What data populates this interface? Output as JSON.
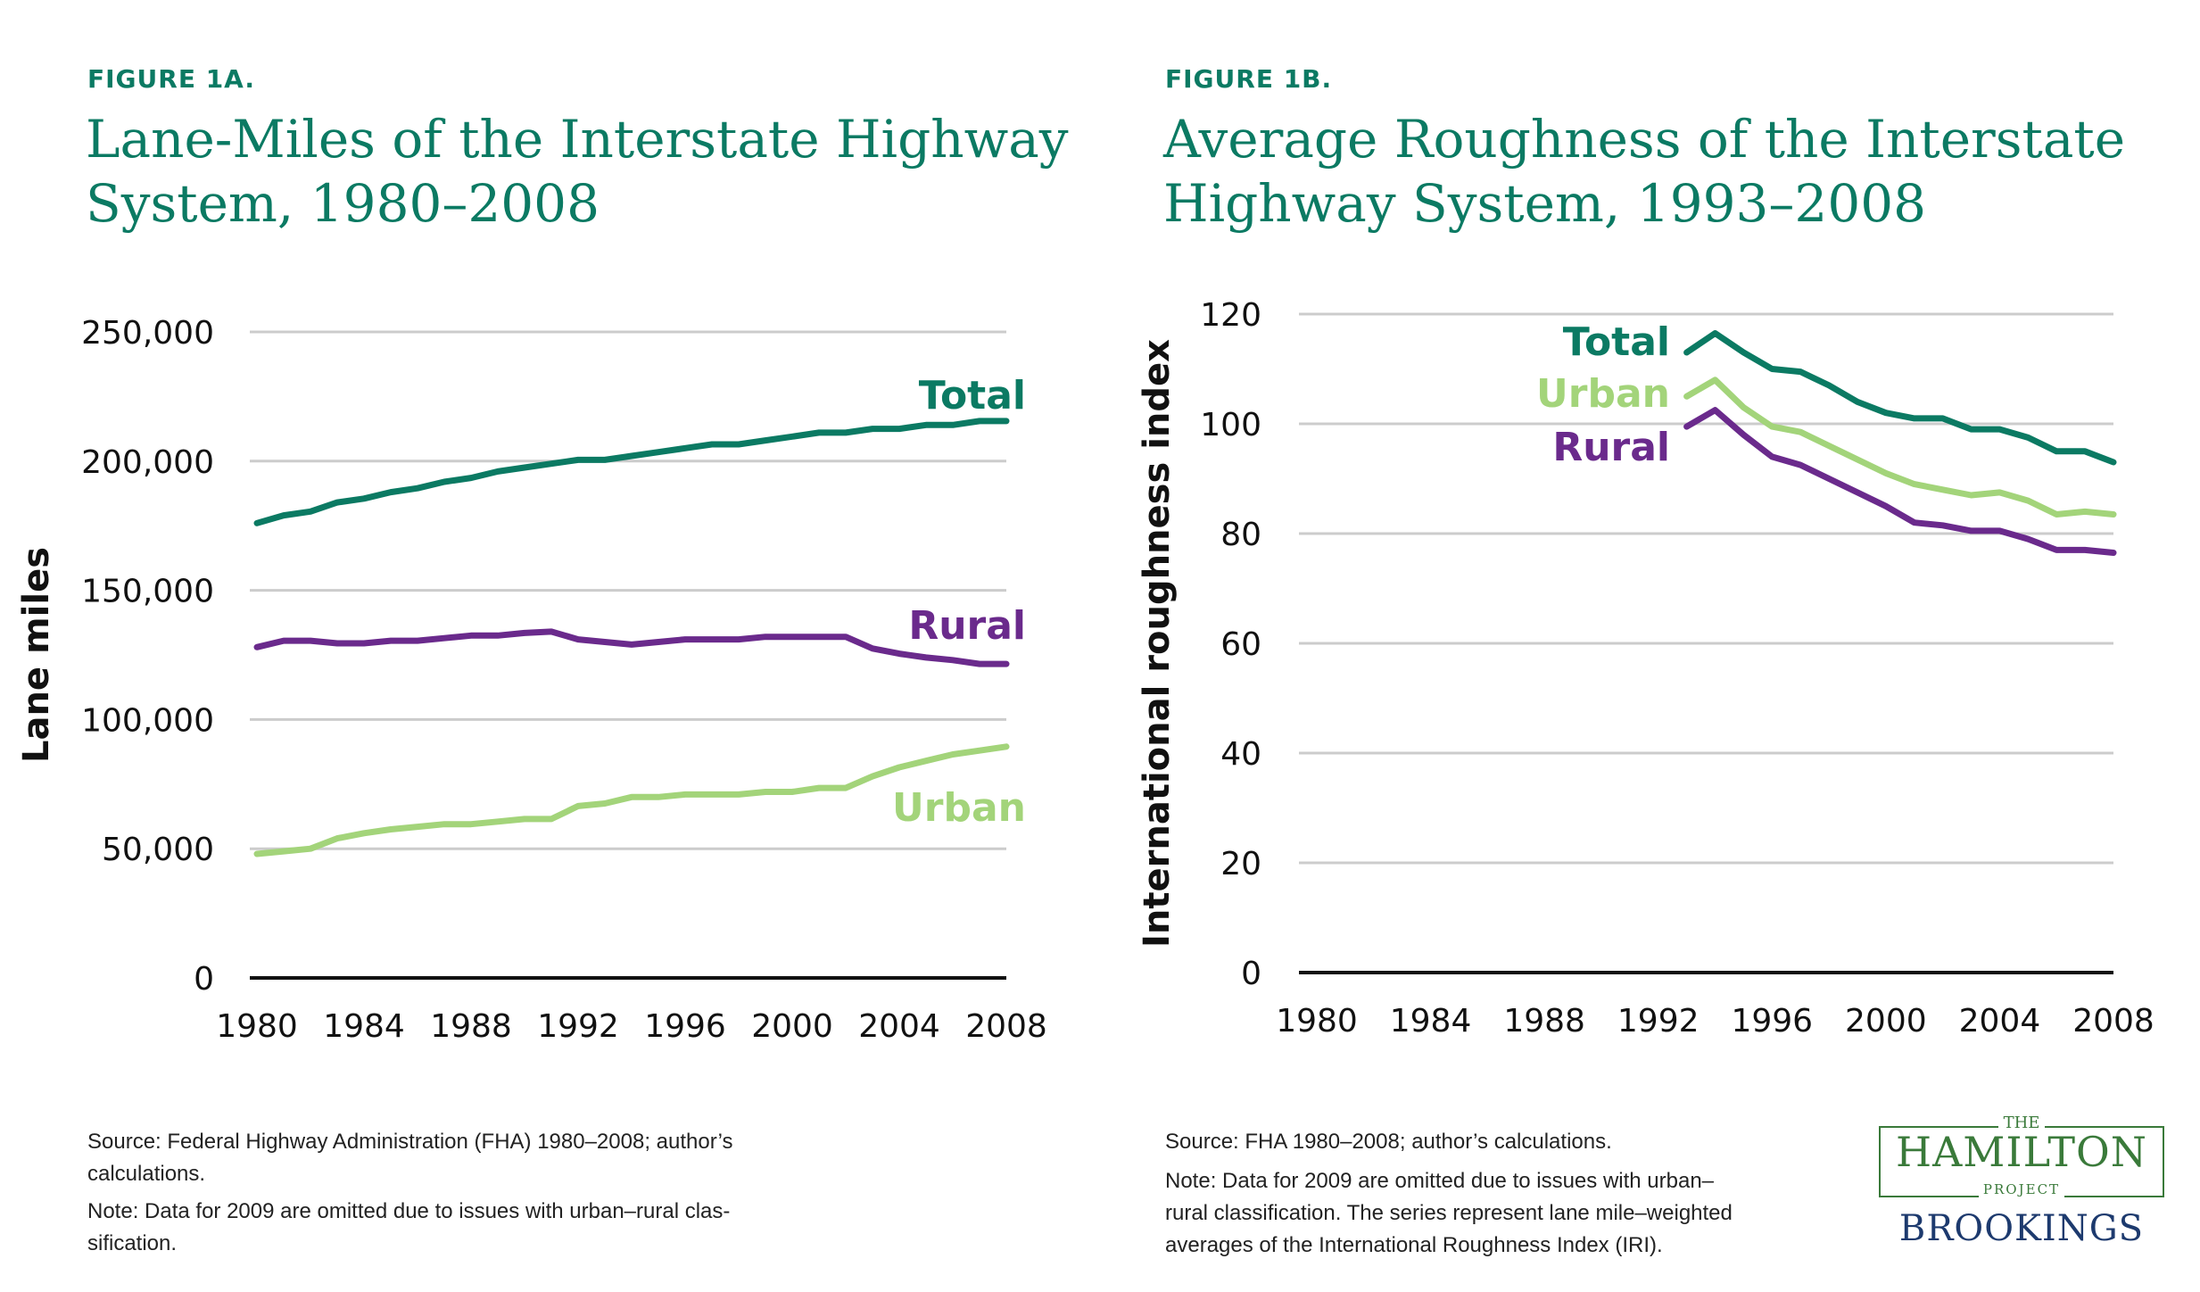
{
  "figures": [
    {
      "label": "FIGURE 1A.",
      "title_lines": [
        "Lane-Miles of the Interstate Highway",
        "System, 1980–2008"
      ],
      "source_lines": [
        "Source: Federal Highway Administration (FHA) 1980–2008; author’s",
        "calculations."
      ],
      "note_lines": [
        "Note: Data for 2009 are omitted due to issues with urban–rural clas-",
        "sification."
      ]
    },
    {
      "label": "FIGURE 1B.",
      "title_lines": [
        "Average Roughness of the Interstate",
        "Highway System, 1993–2008"
      ],
      "source_lines": [
        "Source: FHA 1980–2008; author’s calculations."
      ],
      "note_lines": [
        "Note: Data for 2009 are omitted due to issues with urban–",
        "rural classification. The series represent lane mile–weighted",
        "averages of the International Roughness Index (IRI)."
      ]
    }
  ],
  "chart_data": [
    {
      "type": "line",
      "title": "Lane-Miles of the Interstate Highway System, 1980–2008",
      "xlabel": "",
      "ylabel": "Lane miles",
      "xlim": [
        1980,
        2008
      ],
      "ylim": [
        0,
        250000
      ],
      "xticks": [
        1980,
        1984,
        1988,
        1992,
        1996,
        2000,
        2004,
        2008
      ],
      "yticks": [
        0,
        50000,
        100000,
        150000,
        200000,
        250000
      ],
      "ytick_labels": [
        "0",
        "50,000",
        "100,000",
        "150,000",
        "200,000",
        "250,000"
      ],
      "grid": true,
      "x": [
        1980,
        1981,
        1982,
        1983,
        1984,
        1985,
        1986,
        1987,
        1988,
        1989,
        1990,
        1991,
        1992,
        1993,
        1994,
        1995,
        1996,
        1997,
        1998,
        1999,
        2000,
        2001,
        2002,
        2003,
        2004,
        2005,
        2006,
        2007,
        2008
      ],
      "series": [
        {
          "name": "Total",
          "color": "#0b7a63",
          "values": [
            176000,
            179000,
            180500,
            184000,
            185500,
            188000,
            189500,
            192000,
            193500,
            196000,
            197500,
            199000,
            200500,
            200500,
            202000,
            203500,
            205000,
            206500,
            206500,
            208000,
            209500,
            211000,
            211000,
            212500,
            212500,
            214000,
            214000,
            215500,
            215500
          ]
        },
        {
          "name": "Rural",
          "color": "#6a2a8c",
          "values": [
            128000,
            130500,
            130500,
            129500,
            129500,
            130500,
            130500,
            131500,
            132500,
            132500,
            133500,
            134000,
            131000,
            130000,
            129000,
            130000,
            131000,
            131000,
            131000,
            132000,
            132000,
            132000,
            132000,
            127500,
            125500,
            124000,
            123000,
            121500,
            121500
          ]
        },
        {
          "name": "Urban",
          "color": "#a3d47a",
          "values": [
            48000,
            49000,
            50000,
            54000,
            56000,
            57500,
            58500,
            59500,
            59500,
            60500,
            61500,
            61500,
            66500,
            67500,
            70000,
            70000,
            71000,
            71000,
            71000,
            72000,
            72000,
            73500,
            73500,
            78000,
            81500,
            84000,
            86500,
            88000,
            89500
          ]
        }
      ]
    },
    {
      "type": "line",
      "title": "Average Roughness of the Interstate Highway System, 1993–2008",
      "xlabel": "",
      "ylabel": "International roughness index",
      "xlim": [
        1980,
        2008
      ],
      "ylim": [
        0,
        120
      ],
      "xticks": [
        1980,
        1984,
        1988,
        1992,
        1996,
        2000,
        2004,
        2008
      ],
      "yticks": [
        0,
        20,
        40,
        60,
        80,
        100,
        120
      ],
      "ytick_labels": [
        "0",
        "20",
        "40",
        "60",
        "80",
        "100",
        "120"
      ],
      "grid": true,
      "x": [
        1993,
        1994,
        1995,
        1996,
        1997,
        1998,
        1999,
        2000,
        2001,
        2002,
        2003,
        2004,
        2005,
        2006,
        2007,
        2008
      ],
      "series": [
        {
          "name": "Total",
          "color": "#0b7a63",
          "values": [
            113,
            116.5,
            113,
            110,
            109.5,
            107,
            104,
            102,
            101,
            101,
            99,
            99,
            97.5,
            95,
            95,
            93
          ]
        },
        {
          "name": "Urban",
          "color": "#a3d47a",
          "values": [
            105,
            108,
            103,
            99.5,
            98.5,
            96,
            93.5,
            91,
            89,
            88,
            87,
            87.5,
            86,
            83.5,
            84,
            83.5
          ]
        },
        {
          "name": "Rural",
          "color": "#6a2a8c",
          "values": [
            99.5,
            102.5,
            98,
            94,
            92.5,
            90,
            87.5,
            85,
            82,
            81.5,
            80.5,
            80.5,
            79,
            77,
            77,
            76.5
          ]
        }
      ]
    }
  ],
  "logo": {
    "the": "THE",
    "hamilton": "HAMILTON",
    "project": "PROJECT",
    "brookings": "BROOKINGS"
  }
}
